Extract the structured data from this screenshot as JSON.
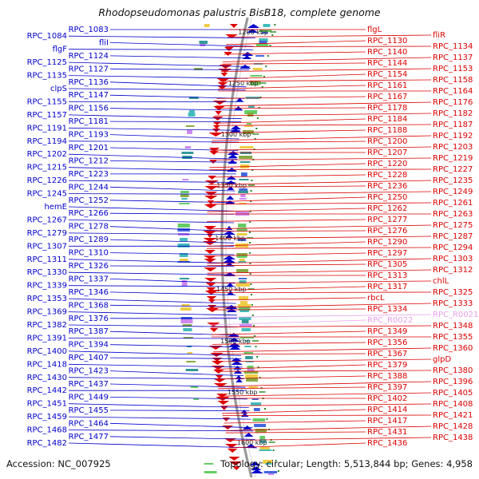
{
  "title": "Rhodopseudomonas palustris BisB18, complete genome",
  "accession": "Accession: NC_007925",
  "summary": "Topology: circular; Length: 5,513,844 bp; Genes: 4,958",
  "colors": {
    "forward": "#0000cc",
    "reverse": "#dd0000",
    "rna": "#e8a0e8",
    "backbone": "#999999",
    "tick": "#228822",
    "cds_palette": [
      "#44bbbb",
      "#66cc66",
      "#cc88ee",
      "#eecc44",
      "#4466dd",
      "#88aa44",
      "#339999"
    ]
  },
  "ticks": [
    "1200 kbp",
    "1250 kbp",
    "1300 kbp",
    "1350 kbp",
    "1400 kbp",
    "1450 kbp",
    "1500 kbp",
    "1550 kbp",
    "1600 kbp"
  ],
  "left_labels": [
    {
      "t": "RPC_1083"
    },
    {
      "t": "RPC_1084"
    },
    {
      "t": "fliI"
    },
    {
      "t": "flgF"
    },
    {
      "t": "RPC_1124"
    },
    {
      "t": "RPC_1125"
    },
    {
      "t": "RPC_1127"
    },
    {
      "t": "RPC_1135"
    },
    {
      "t": "RPC_1136"
    },
    {
      "t": "clpS"
    },
    {
      "t": "RPC_1147"
    },
    {
      "t": "RPC_1155"
    },
    {
      "t": "RPC_1156"
    },
    {
      "t": "RPC_1157"
    },
    {
      "t": "RPC_1181"
    },
    {
      "t": "RPC_1191"
    },
    {
      "t": "RPC_1193"
    },
    {
      "t": "RPC_1194"
    },
    {
      "t": "RPC_1201"
    },
    {
      "t": "RPC_1202"
    },
    {
      "t": "RPC_1212"
    },
    {
      "t": "RPC_1215"
    },
    {
      "t": "RPC_1223"
    },
    {
      "t": "RPC_1226"
    },
    {
      "t": "RPC_1244"
    },
    {
      "t": "RPC_1245"
    },
    {
      "t": "RPC_1252"
    },
    {
      "t": "hemE"
    },
    {
      "t": "RPC_1266"
    },
    {
      "t": "RPC_1267"
    },
    {
      "t": "RPC_1278"
    },
    {
      "t": "RPC_1279"
    },
    {
      "t": "RPC_1289"
    },
    {
      "t": "RPC_1307"
    },
    {
      "t": "RPC_1310"
    },
    {
      "t": "RPC_1311"
    },
    {
      "t": "RPC_1326"
    },
    {
      "t": "RPC_1330"
    },
    {
      "t": "RPC_1337"
    },
    {
      "t": "RPC_1339"
    },
    {
      "t": "RPC_1346"
    },
    {
      "t": "RPC_1353"
    },
    {
      "t": "RPC_1368"
    },
    {
      "t": "RPC_1369"
    },
    {
      "t": "RPC_1376"
    },
    {
      "t": "RPC_1382"
    },
    {
      "t": "RPC_1387"
    },
    {
      "t": "RPC_1391"
    },
    {
      "t": "RPC_1394"
    },
    {
      "t": "RPC_1400"
    },
    {
      "t": "RPC_1407"
    },
    {
      "t": "RPC_1418"
    },
    {
      "t": "RPC_1423"
    },
    {
      "t": "RPC_1430"
    },
    {
      "t": "RPC_1437"
    },
    {
      "t": "RPC_1442"
    },
    {
      "t": "RPC_1449"
    },
    {
      "t": "RPC_1451"
    },
    {
      "t": "RPC_1455"
    },
    {
      "t": "RPC_1459"
    },
    {
      "t": "RPC_1464"
    },
    {
      "t": "RPC_1468"
    },
    {
      "t": "RPC_1477"
    },
    {
      "t": "RPC_1482"
    }
  ],
  "right_labels": [
    {
      "t": "flgL"
    },
    {
      "t": "fliR"
    },
    {
      "t": "RPC_1130"
    },
    {
      "t": "RPC_1134"
    },
    {
      "t": "RPC_1140"
    },
    {
      "t": "RPC_1137"
    },
    {
      "t": "RPC_1144"
    },
    {
      "t": "RPC_1153"
    },
    {
      "t": "RPC_1154"
    },
    {
      "t": "RPC_1158"
    },
    {
      "t": "RPC_1161"
    },
    {
      "t": "RPC_1164"
    },
    {
      "t": "RPC_1167"
    },
    {
      "t": "RPC_1176"
    },
    {
      "t": "RPC_1178"
    },
    {
      "t": "RPC_1182"
    },
    {
      "t": "RPC_1184"
    },
    {
      "t": "RPC_1187"
    },
    {
      "t": "RPC_1188"
    },
    {
      "t": "RPC_1192"
    },
    {
      "t": "RPC_1200"
    },
    {
      "t": "RPC_1203"
    },
    {
      "t": "RPC_1207"
    },
    {
      "t": "RPC_1219"
    },
    {
      "t": "RPC_1220"
    },
    {
      "t": "RPC_1227"
    },
    {
      "t": "RPC_1228"
    },
    {
      "t": "RPC_1235"
    },
    {
      "t": "RPC_1236"
    },
    {
      "t": "RPC_1249"
    },
    {
      "t": "RPC_1250"
    },
    {
      "t": "RPC_1261"
    },
    {
      "t": "RPC_1262"
    },
    {
      "t": "RPC_1263"
    },
    {
      "t": "RPC_1277"
    },
    {
      "t": "RPC_1275"
    },
    {
      "t": "RPC_1276"
    },
    {
      "t": "RPC_1287"
    },
    {
      "t": "RPC_1290"
    },
    {
      "t": "RPC_1294"
    },
    {
      "t": "RPC_1297"
    },
    {
      "t": "RPC_1303"
    },
    {
      "t": "RPC_1305"
    },
    {
      "t": "RPC_1312"
    },
    {
      "t": "RPC_1313"
    },
    {
      "t": "chlL"
    },
    {
      "t": "RPC_1317"
    },
    {
      "t": "RPC_1325"
    },
    {
      "t": "rbcL"
    },
    {
      "t": "RPC_1333"
    },
    {
      "t": "RPC_1334"
    },
    {
      "t": "RPC_R0021",
      "rna": true
    },
    {
      "t": "RPC_R0022",
      "rna": true
    },
    {
      "t": "RPC_1348"
    },
    {
      "t": "RPC_1349"
    },
    {
      "t": "RPC_1355"
    },
    {
      "t": "RPC_1356"
    },
    {
      "t": "RPC_1360"
    },
    {
      "t": "RPC_1367"
    },
    {
      "t": "glpD"
    },
    {
      "t": "RPC_1379"
    },
    {
      "t": "RPC_1380"
    },
    {
      "t": "RPC_1388"
    },
    {
      "t": "RPC_1396"
    },
    {
      "t": "RPC_1397"
    },
    {
      "t": "RPC_1405"
    },
    {
      "t": "RPC_1402"
    },
    {
      "t": "RPC_1408"
    },
    {
      "t": "RPC_1414"
    },
    {
      "t": "RPC_1421"
    },
    {
      "t": "RPC_1417"
    },
    {
      "t": "RPC_1428"
    },
    {
      "t": "RPC_1431"
    },
    {
      "t": "RPC_1438"
    },
    {
      "t": "RPC_1436"
    }
  ]
}
